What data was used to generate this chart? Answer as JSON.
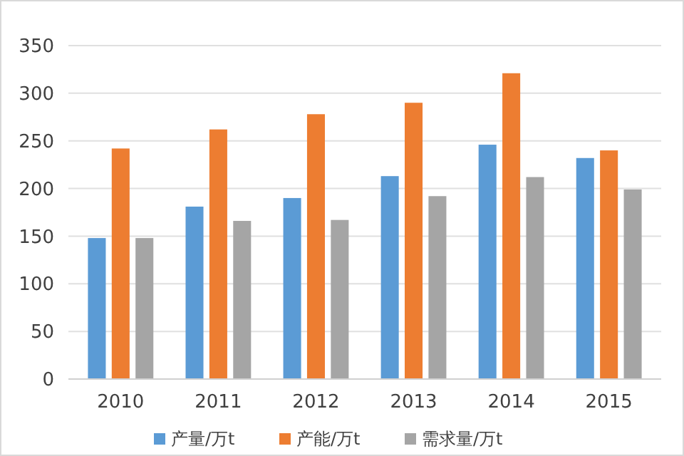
{
  "chart_data": {
    "type": "bar",
    "categories": [
      "2010",
      "2011",
      "2012",
      "2013",
      "2014",
      "2015"
    ],
    "series": [
      {
        "name": "产量/万t",
        "color": "#5b9bd5",
        "values": [
          148,
          181,
          190,
          213,
          246,
          232
        ]
      },
      {
        "name": "产能/万t",
        "color": "#ed7d31",
        "values": [
          242,
          262,
          278,
          290,
          321,
          240
        ]
      },
      {
        "name": "需求量/万t",
        "color": "#a5a5a5",
        "values": [
          148,
          166,
          167,
          192,
          212,
          199
        ]
      }
    ],
    "ylim": [
      0,
      350
    ],
    "yticks": [
      0,
      50,
      100,
      150,
      200,
      250,
      300,
      350
    ],
    "grid": "y",
    "legend": "bottom"
  }
}
